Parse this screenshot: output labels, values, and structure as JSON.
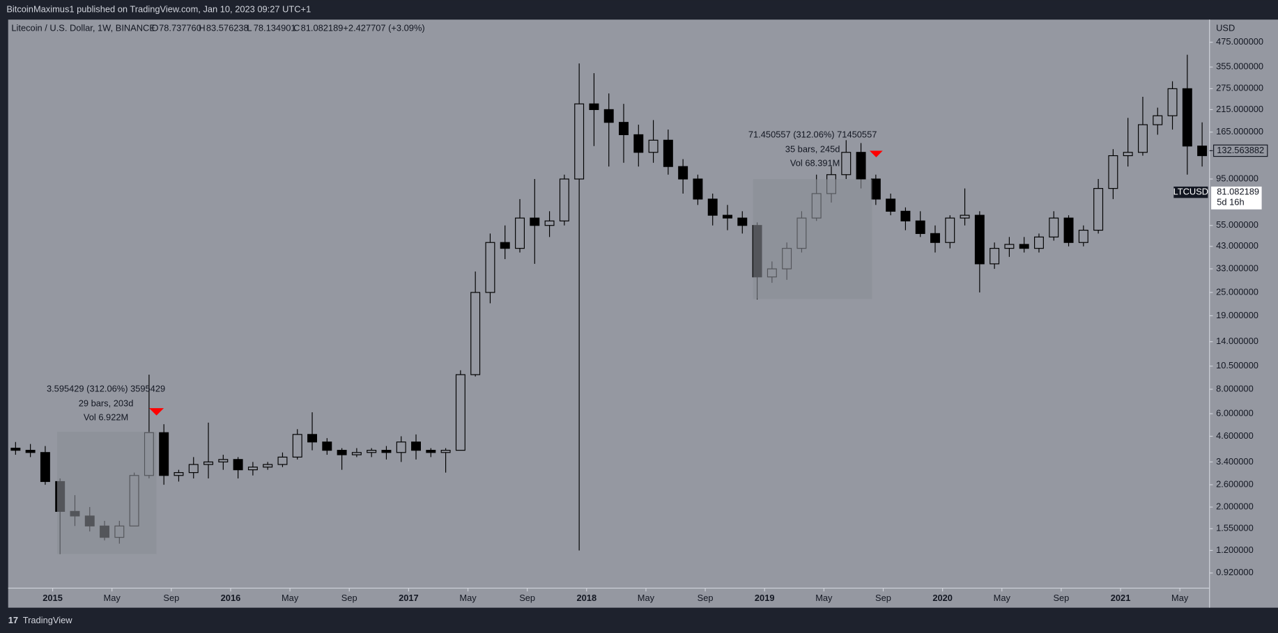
{
  "header": {
    "publisher": "BitcoinMaximus1 published on TradingView.com, Jan 10, 2023 09:27 UTC+1",
    "brand": "TradingView"
  },
  "chart_data": {
    "type": "candlestick",
    "title": "Litecoin / U.S. Dollar, 1W, BINANCE",
    "ohlc_legend": {
      "O": "78.737760",
      "H": "83.576238",
      "L": "78.134901",
      "C": "81.082189",
      "change": "+2.427707 (+3.09%)"
    },
    "y_unit": "USD",
    "log_scale": true,
    "up_color": "#9598a1",
    "down_color": "#000000",
    "wick_color": "#000000",
    "open": [
      4.0,
      3.9,
      3.8,
      2.7,
      1.9,
      1.8,
      1.6,
      1.4,
      1.6,
      2.9,
      4.8,
      2.9,
      3.0,
      3.3,
      3.4,
      3.5,
      3.1,
      3.2,
      3.3,
      3.6,
      4.7,
      4.3,
      3.9,
      3.7,
      3.8,
      3.9,
      3.8,
      4.3,
      3.9,
      3.8,
      3.9,
      9.5,
      25,
      45,
      42,
      60,
      55,
      58,
      95,
      230,
      215,
      185,
      160,
      130,
      150,
      110,
      95,
      75,
      62,
      60,
      55,
      30,
      33,
      42,
      60,
      80,
      100,
      130,
      95,
      75,
      65,
      58,
      50,
      45,
      60,
      62,
      35,
      42,
      44,
      42,
      48,
      60,
      45,
      52,
      85,
      125,
      130,
      180,
      200,
      275,
      140
    ],
    "high": [
      4.3,
      4.2,
      4.1,
      2.8,
      2.3,
      2.0,
      1.7,
      1.7,
      3.0,
      9.5,
      5.3,
      3.1,
      3.6,
      5.4,
      3.7,
      3.6,
      3.4,
      3.4,
      3.8,
      5.0,
      6.1,
      4.5,
      4.0,
      4.0,
      4.0,
      4.1,
      4.6,
      4.7,
      4.0,
      4.0,
      10,
      32,
      50,
      55,
      75,
      95,
      65,
      100,
      370,
      330,
      260,
      230,
      180,
      190,
      170,
      120,
      100,
      80,
      70,
      65,
      57,
      36,
      45,
      65,
      100,
      110,
      150,
      145,
      100,
      80,
      68,
      65,
      55,
      62,
      85,
      65,
      45,
      48,
      48,
      50,
      65,
      62,
      55,
      95,
      135,
      195,
      250,
      220,
      300,
      410,
      185
    ],
    "low": [
      3.7,
      3.6,
      2.6,
      1.15,
      1.6,
      1.5,
      1.35,
      1.3,
      1.6,
      2.8,
      2.6,
      2.7,
      2.8,
      2.8,
      3.1,
      2.8,
      2.9,
      3.1,
      3.2,
      3.5,
      3.9,
      3.7,
      3.1,
      3.6,
      3.6,
      3.5,
      3.4,
      3.5,
      3.6,
      3.0,
      3.9,
      9.3,
      22,
      37,
      40,
      35,
      48,
      55,
      1.2,
      140,
      110,
      115,
      110,
      115,
      100,
      80,
      70,
      55,
      52,
      50,
      23,
      28,
      29,
      40,
      58,
      72,
      95,
      85,
      70,
      62,
      52,
      48,
      40,
      42,
      55,
      25,
      33,
      38,
      40,
      40,
      46,
      43,
      43,
      50,
      75,
      110,
      125,
      160,
      170,
      100,
      110
    ],
    "close": [
      3.9,
      3.8,
      2.7,
      1.9,
      1.8,
      1.6,
      1.4,
      1.6,
      2.9,
      4.8,
      2.9,
      3.0,
      3.3,
      3.4,
      3.5,
      3.1,
      3.2,
      3.3,
      3.6,
      4.7,
      4.3,
      3.9,
      3.7,
      3.8,
      3.9,
      3.8,
      4.3,
      3.9,
      3.8,
      3.9,
      9.5,
      25,
      45,
      42,
      60,
      55,
      58,
      95,
      230,
      215,
      185,
      160,
      130,
      150,
      110,
      95,
      75,
      62,
      60,
      55,
      30,
      33,
      42,
      60,
      80,
      100,
      130,
      95,
      75,
      65,
      58,
      50,
      45,
      60,
      62,
      35,
      42,
      44,
      42,
      48,
      60,
      45,
      52,
      85,
      125,
      130,
      180,
      200,
      275,
      140,
      125
    ],
    "xlim": [
      0,
      81
    ],
    "xticks": [
      {
        "value": 3,
        "label": "2015"
      },
      {
        "value": 7,
        "label": "May"
      },
      {
        "value": 11,
        "label": "Sep"
      },
      {
        "value": 15,
        "label": "2016"
      },
      {
        "value": 19,
        "label": "May"
      },
      {
        "value": 23,
        "label": "Sep"
      },
      {
        "value": 27,
        "label": "2017"
      },
      {
        "value": 31,
        "label": "May"
      },
      {
        "value": 35,
        "label": "Sep"
      },
      {
        "value": 39,
        "label": "2018"
      },
      {
        "value": 43,
        "label": "May"
      },
      {
        "value": 47,
        "label": "Sep"
      },
      {
        "value": 51,
        "label": "2019"
      },
      {
        "value": 55,
        "label": "May"
      },
      {
        "value": 59,
        "label": "Sep"
      },
      {
        "value": 63,
        "label": "2020"
      },
      {
        "value": 67,
        "label": "May"
      },
      {
        "value": 71,
        "label": "Sep"
      },
      {
        "value": 75,
        "label": "2021"
      },
      {
        "value": 79,
        "label": "May"
      }
    ],
    "ylim": [
      0.77,
      620
    ],
    "yticks": [
      {
        "value": 475,
        "label": "475.000000"
      },
      {
        "value": 355,
        "label": "355.000000"
      },
      {
        "value": 275,
        "label": "275.000000"
      },
      {
        "value": 215,
        "label": "215.000000"
      },
      {
        "value": 165,
        "label": "165.000000"
      },
      {
        "value": 95,
        "label": "95.000000"
      },
      {
        "value": 55,
        "label": "55.000000"
      },
      {
        "value": 43,
        "label": "43.000000"
      },
      {
        "value": 33,
        "label": "33.000000"
      },
      {
        "value": 25,
        "label": "25.000000"
      },
      {
        "value": 19,
        "label": "19.000000"
      },
      {
        "value": 14,
        "label": "14.000000"
      },
      {
        "value": 10.5,
        "label": "10.500000"
      },
      {
        "value": 8,
        "label": "8.000000"
      },
      {
        "value": 6,
        "label": "6.000000"
      },
      {
        "value": 4.6,
        "label": "4.600000"
      },
      {
        "value": 3.4,
        "label": "3.400000"
      },
      {
        "value": 2.6,
        "label": "2.600000"
      },
      {
        "value": 2,
        "label": "2.000000"
      },
      {
        "value": 1.55,
        "label": "1.550000"
      },
      {
        "value": 1.2,
        "label": "1.200000"
      },
      {
        "value": 0.92,
        "label": "0.920000"
      }
    ],
    "last_price": {
      "value": 132.563882,
      "label": "132.563882"
    },
    "symbol_price": {
      "symbol": "LTCUSD",
      "value": 81.082189,
      "label": "81.082189",
      "countdown": "5d 16h"
    },
    "measures": [
      {
        "change": "3.595429 (312.06%) 3595429",
        "bars": "29 bars, 203d",
        "volume": "Vol 6.922M"
      },
      {
        "change": "71.450557 (312.06%) 71450557",
        "bars": "35 bars, 245d",
        "volume": "Vol 68.391M"
      }
    ]
  }
}
